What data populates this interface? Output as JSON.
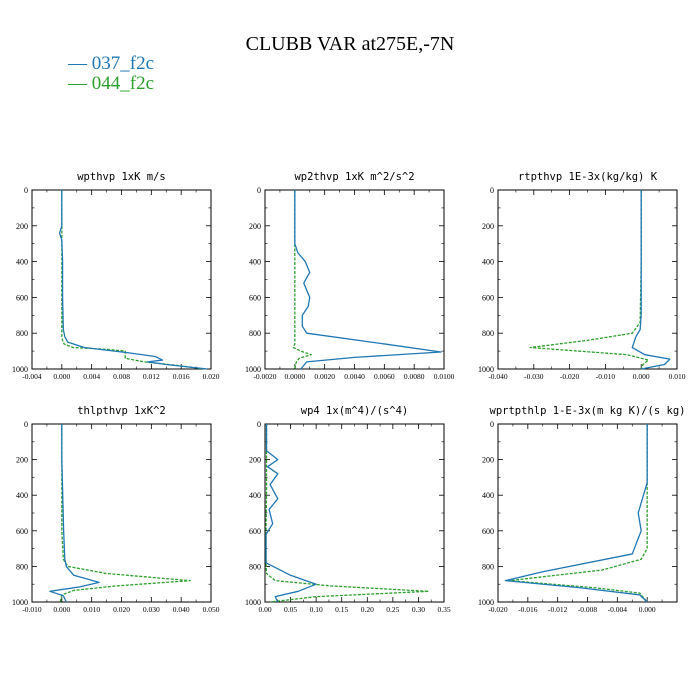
{
  "figure": {
    "title": "CLUBB VAR at275E,-7N",
    "legend": [
      {
        "label": "037_f2c",
        "color": "#1f77b4"
      },
      {
        "label": "044_f2c",
        "color": "#2ca02c"
      }
    ]
  },
  "chart_data": [
    {
      "type": "line",
      "title": "wpthvp   1xK m/s",
      "xlim": [
        -0.004,
        0.02
      ],
      "ylim": [
        1000,
        0
      ],
      "xticks": [
        "-0.004",
        "0.000",
        "0.004",
        "0.008",
        "0.012",
        "0.016",
        "0.020"
      ],
      "xtick_values": [
        -0.004,
        0.0,
        0.004,
        0.008,
        0.012,
        0.016,
        0.02
      ],
      "yticks": [
        "0",
        "200",
        "400",
        "600",
        "800",
        "1000"
      ],
      "grid": false,
      "series": [
        {
          "name": "037_f2c",
          "x": [
            0.0,
            0.0,
            -0.0003,
            0.0,
            0.0001,
            0.0001,
            0.0002,
            0.0004,
            0.0008,
            0.003,
            0.009,
            0.0125,
            0.0135,
            0.0115,
            0.014,
            0.0195
          ],
          "y": [
            0,
            200,
            240,
            280,
            400,
            600,
            780,
            820,
            850,
            880,
            910,
            930,
            950,
            960,
            975,
            1000
          ]
        },
        {
          "name": "044_f2c",
          "x": [
            0.0,
            0.0,
            0.0,
            0.0,
            0.0,
            0.0,
            0.0001,
            0.0003,
            0.0015,
            0.006,
            0.0085,
            0.0085,
            0.011,
            0.0155,
            0.019
          ],
          "y": [
            0,
            200,
            400,
            600,
            780,
            820,
            840,
            860,
            880,
            890,
            900,
            940,
            960,
            980,
            1000
          ]
        }
      ]
    },
    {
      "type": "line",
      "title": "wp2thvp   1xK m^2/s^2",
      "xlim": [
        -0.002,
        0.01
      ],
      "ylim": [
        1000,
        0
      ],
      "xticks": [
        "-0.0020",
        "0.0000",
        "0.0020",
        "0.0040",
        "0.0060",
        "0.0080",
        "0.0100"
      ],
      "xtick_values": [
        -0.002,
        0.0,
        0.002,
        0.004,
        0.006,
        0.008,
        0.01
      ],
      "yticks": [
        "0",
        "200",
        "400",
        "600",
        "800",
        "1000"
      ],
      "grid": false,
      "series": [
        {
          "name": "037_f2c",
          "x": [
            0.0,
            0.0,
            0.0002,
            0.0007,
            0.001,
            0.0006,
            0.001,
            0.0009,
            0.0005,
            0.0005,
            0.0008,
            0.006,
            0.0098,
            0.004,
            0.0008,
            0.0004
          ],
          "y": [
            0,
            300,
            350,
            400,
            460,
            520,
            600,
            650,
            700,
            760,
            800,
            860,
            905,
            935,
            960,
            1000
          ]
        },
        {
          "name": "044_f2c",
          "x": [
            0.0,
            0.0,
            0.0,
            0.0,
            0.0,
            -0.0001,
            0.0004,
            0.0011,
            0.0003,
            0.0001,
            0.0
          ],
          "y": [
            0,
            400,
            600,
            800,
            860,
            880,
            900,
            920,
            940,
            960,
            1000
          ]
        }
      ]
    },
    {
      "type": "line",
      "title": "rtpthvp   1E-3x(kg/kg) K",
      "xlim": [
        -0.04,
        0.01
      ],
      "ylim": [
        1000,
        0
      ],
      "xticks": [
        "-0.040",
        "-0.030",
        "-0.020",
        "-0.010",
        "0.000",
        "0.010"
      ],
      "xtick_values": [
        -0.04,
        -0.03,
        -0.02,
        -0.01,
        0.0,
        0.01
      ],
      "yticks": [
        "0",
        "200",
        "400",
        "600",
        "800",
        "1000"
      ],
      "grid": false,
      "series": [
        {
          "name": "037_f2c",
          "x": [
            0.0,
            0.0,
            0.0,
            -0.0003,
            -0.0015,
            -0.0025,
            0.001,
            0.008,
            0.0065,
            0.0
          ],
          "y": [
            0,
            400,
            700,
            780,
            820,
            880,
            920,
            945,
            975,
            1000
          ]
        },
        {
          "name": "044_f2c",
          "x": [
            0.0,
            0.0,
            -0.0003,
            -0.0025,
            -0.015,
            -0.031,
            -0.004,
            0.002,
            0.0005,
            0.0
          ],
          "y": [
            0,
            400,
            740,
            800,
            840,
            880,
            920,
            950,
            975,
            1000
          ]
        }
      ]
    },
    {
      "type": "line",
      "title": "thlpthvp   1xK^2",
      "xlim": [
        -0.01,
        0.05
      ],
      "ylim": [
        1000,
        0
      ],
      "xticks": [
        "-0.010",
        "0.000",
        "0.010",
        "0.020",
        "0.030",
        "0.040",
        "0.050"
      ],
      "xtick_values": [
        -0.01,
        0.0,
        0.01,
        0.02,
        0.03,
        0.04,
        0.05
      ],
      "yticks": [
        "0",
        "200",
        "400",
        "600",
        "800",
        "1000"
      ],
      "grid": false,
      "series": [
        {
          "name": "037_f2c",
          "x": [
            0.0,
            0.0,
            0.0003,
            0.0006,
            0.001,
            0.0015,
            0.004,
            0.0125,
            0.006,
            -0.004,
            0.0005,
            0.0015
          ],
          "y": [
            0,
            200,
            400,
            600,
            760,
            800,
            850,
            890,
            915,
            940,
            965,
            1000
          ]
        },
        {
          "name": "044_f2c",
          "x": [
            0.0,
            0.0,
            0.0,
            0.0005,
            0.002,
            0.015,
            0.043,
            0.018,
            0.004,
            0.0,
            -0.0005
          ],
          "y": [
            0,
            200,
            600,
            760,
            800,
            840,
            880,
            910,
            935,
            960,
            1000
          ]
        }
      ]
    },
    {
      "type": "line",
      "title": "wp4   1x(m^4)/(s^4)",
      "xlim": [
        0.0,
        0.35
      ],
      "ylim": [
        1000,
        0
      ],
      "xticks": [
        "0.00",
        "0.05",
        "0.10",
        "0.15",
        "0.20",
        "0.25",
        "0.30",
        "0.35"
      ],
      "xtick_values": [
        0.0,
        0.05,
        0.1,
        0.15,
        0.2,
        0.25,
        0.3,
        0.35
      ],
      "yticks": [
        "0",
        "200",
        "400",
        "600",
        "800",
        "1000"
      ],
      "grid": false,
      "series": [
        {
          "name": "037_f2c",
          "x": [
            0.003,
            0.003,
            0.025,
            0.005,
            0.025,
            0.01,
            0.025,
            0.008,
            0.015,
            0.002,
            0.002,
            0.05,
            0.1,
            0.065,
            0.02,
            0.025
          ],
          "y": [
            0,
            150,
            200,
            240,
            280,
            340,
            420,
            480,
            560,
            620,
            780,
            850,
            900,
            940,
            970,
            1000
          ]
        },
        {
          "name": "044_f2c",
          "x": [
            0.003,
            0.003,
            0.003,
            0.002,
            0.002,
            0.003,
            0.02,
            0.13,
            0.32,
            0.1,
            0.01
          ],
          "y": [
            0,
            200,
            400,
            600,
            780,
            840,
            880,
            910,
            940,
            970,
            1000
          ]
        }
      ]
    },
    {
      "type": "line",
      "title": "wprtpthlp   1-E-3x(m kg K)/(s kg)",
      "xlim": [
        -0.02,
        0.004
      ],
      "ylim": [
        1000,
        0
      ],
      "xticks": [
        "-0.020",
        "-0.016",
        "-0.012",
        "-0.008",
        "-0.004",
        "0.000"
      ],
      "xtick_values": [
        -0.02,
        -0.016,
        -0.012,
        -0.008,
        -0.004,
        0.0
      ],
      "yticks": [
        "0",
        "200",
        "400",
        "600",
        "800",
        "1000"
      ],
      "grid": false,
      "series": [
        {
          "name": "037_f2c",
          "x": [
            0.0,
            0.0,
            -0.0005,
            -0.0012,
            -0.0008,
            -0.002,
            -0.014,
            -0.019,
            -0.009,
            -0.001,
            0.0
          ],
          "y": [
            0,
            330,
            400,
            500,
            600,
            730,
            830,
            880,
            920,
            960,
            1000
          ]
        },
        {
          "name": "044_f2c",
          "x": [
            0.0,
            0.0,
            0.0,
            0.0,
            -0.0008,
            -0.006,
            -0.0185,
            -0.007,
            -0.001,
            0.0
          ],
          "y": [
            0,
            400,
            600,
            700,
            760,
            820,
            880,
            920,
            950,
            1000
          ]
        }
      ]
    }
  ]
}
